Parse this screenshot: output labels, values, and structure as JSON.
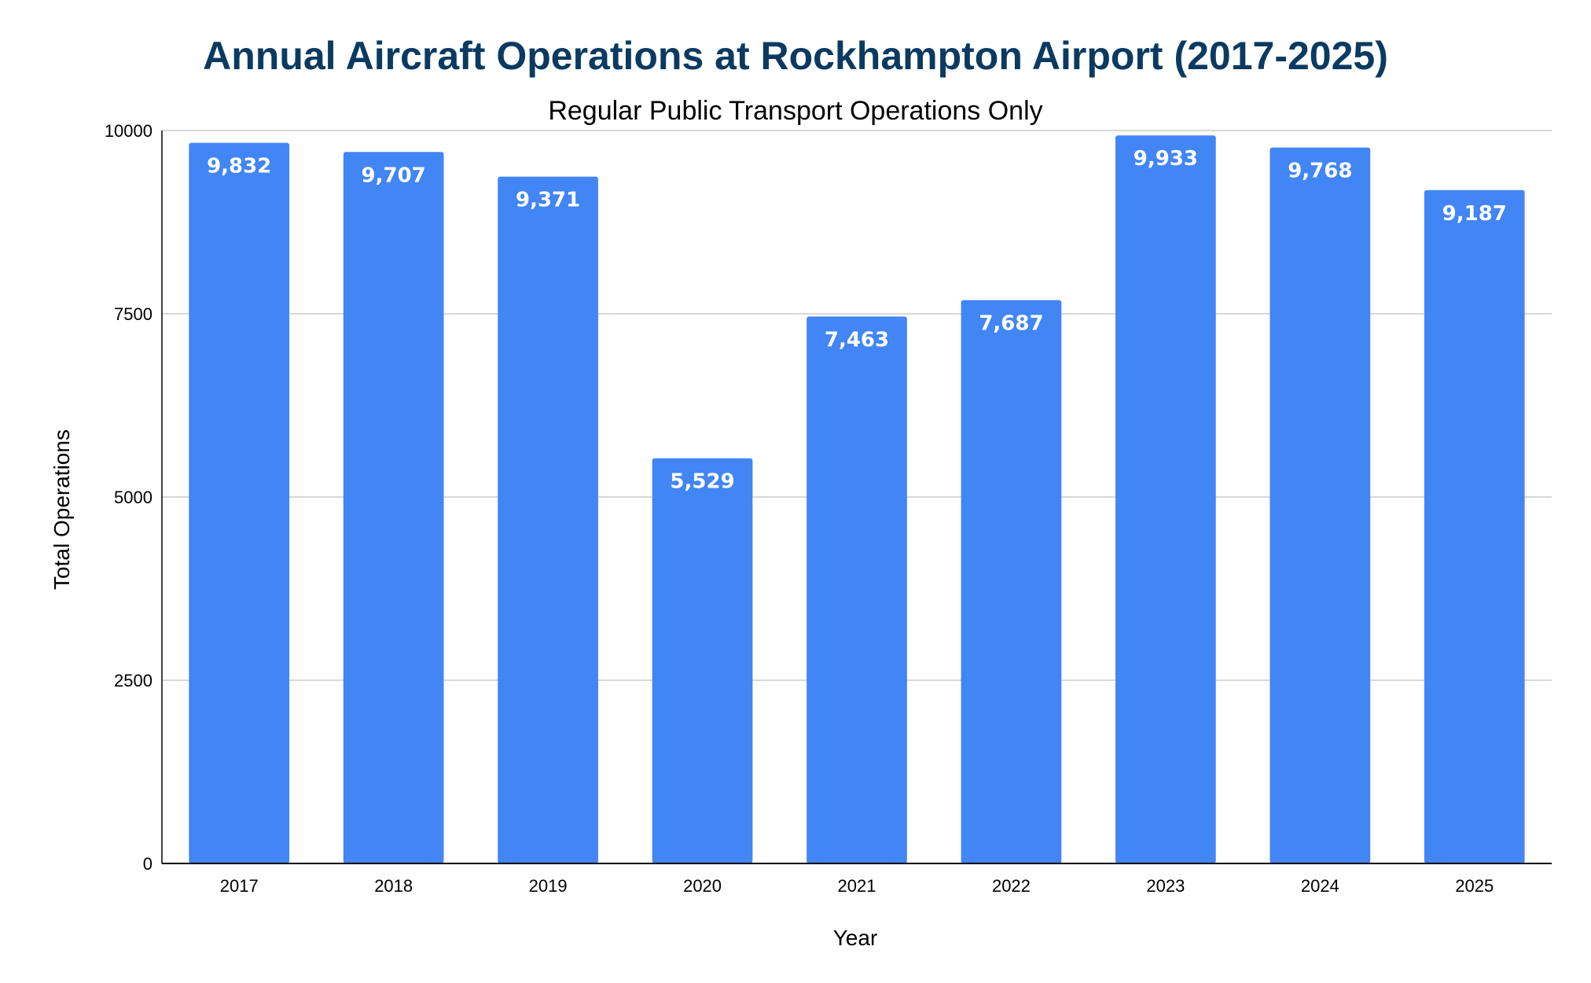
{
  "chart_data": {
    "type": "bar",
    "title": "Annual Aircraft Operations at Rockhampton Airport (2017-2025)",
    "subtitle": "Regular Public Transport Operations Only",
    "xlabel": "Year",
    "ylabel": "Total Operations",
    "categories": [
      "2017",
      "2018",
      "2019",
      "2020",
      "2021",
      "2022",
      "2023",
      "2024",
      "2025"
    ],
    "values": [
      9832,
      9707,
      9371,
      5529,
      7463,
      7687,
      9933,
      9768,
      9187
    ],
    "data_labels": [
      "9,832",
      "9,707",
      "9,371",
      "5,529",
      "7,463",
      "7,687",
      "9,933",
      "9,768",
      "9,187"
    ],
    "yticks": [
      0,
      2500,
      5000,
      7500,
      10000
    ],
    "ytick_labels": [
      "0",
      "2500",
      "5000",
      "7500",
      "10000"
    ],
    "ylim": [
      0,
      10000
    ],
    "grid": true,
    "legend": "none",
    "colors": {
      "bar": "#4285f4",
      "title": "#0b3a61",
      "text": "#000000",
      "grid": "#cccccc",
      "axis": "#000000",
      "data_label": "#ffffff"
    }
  }
}
